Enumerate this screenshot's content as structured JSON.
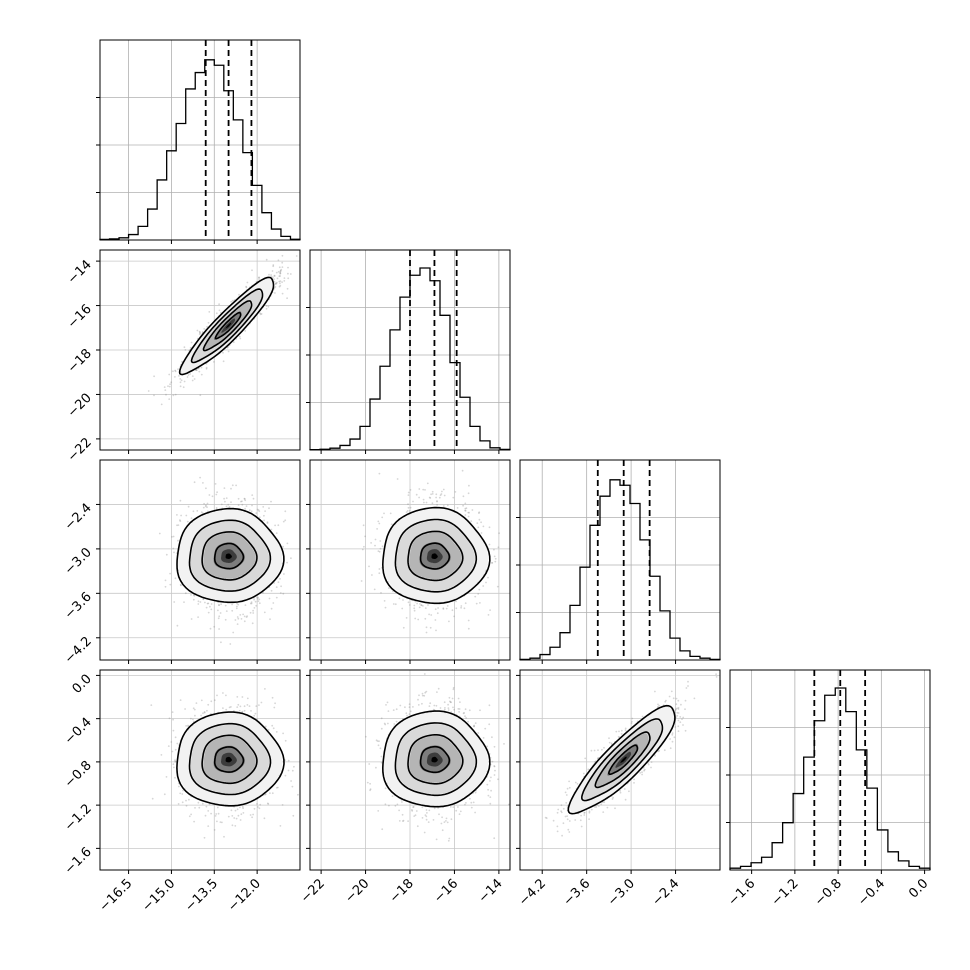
{
  "chart_data": {
    "type": "corner",
    "grid": true,
    "parameters": [
      {
        "range": [
          -17.5,
          -10.5
        ],
        "ticks": [
          -16.5,
          -15.0,
          -13.5,
          -12.0
        ],
        "tick_labels": [
          "−16.5",
          "−15.0",
          "−13.5",
          "−12.0"
        ],
        "quantiles": [
          -13.8,
          -13.0,
          -12.2
        ],
        "mean": -13.0,
        "sd": 0.8
      },
      {
        "range": [
          -22.5,
          -13.5
        ],
        "ticks": [
          -22,
          -20,
          -18,
          -16,
          -14
        ],
        "tick_labels": [
          "−22",
          "−20",
          "−18",
          "−16",
          "−14"
        ],
        "quantiles": [
          -18.0,
          -16.9,
          -15.9
        ],
        "mean": -16.9,
        "sd": 1.05
      },
      {
        "range": [
          -4.5,
          -1.8
        ],
        "ticks": [
          -4.2,
          -3.6,
          -3.0,
          -2.4
        ],
        "tick_labels": [
          "−4.2",
          "−3.6",
          "−3.0",
          "−2.4"
        ],
        "quantiles": [
          -3.45,
          -3.1,
          -2.75
        ],
        "mean": -3.1,
        "sd": 0.35
      },
      {
        "range": [
          -1.8,
          0.05
        ],
        "ticks": [
          -1.6,
          -1.2,
          -0.8,
          -0.4,
          0.0
        ],
        "tick_labels": [
          "−1.6",
          "−1.2",
          "−0.8",
          "−0.4",
          "0.0"
        ],
        "quantiles": [
          -1.02,
          -0.78,
          -0.55
        ],
        "mean": -0.78,
        "sd": 0.24
      }
    ],
    "histograms": [
      [
        0.003,
        0.006,
        0.012,
        0.03,
        0.075,
        0.17,
        0.33,
        0.49,
        0.64,
        0.83,
        0.92,
        0.99,
        0.96,
        0.82,
        0.66,
        0.48,
        0.3,
        0.15,
        0.06,
        0.02,
        0.004
      ],
      [
        0.002,
        0.004,
        0.01,
        0.025,
        0.06,
        0.13,
        0.28,
        0.46,
        0.66,
        0.84,
        0.96,
        1.0,
        0.93,
        0.74,
        0.48,
        0.29,
        0.13,
        0.05,
        0.012,
        0.003
      ],
      [
        0.003,
        0.01,
        0.03,
        0.07,
        0.15,
        0.3,
        0.51,
        0.74,
        0.9,
        0.99,
        0.96,
        0.86,
        0.66,
        0.46,
        0.27,
        0.12,
        0.05,
        0.02,
        0.01,
        0.003
      ],
      [
        0.01,
        0.02,
        0.04,
        0.07,
        0.15,
        0.26,
        0.42,
        0.62,
        0.82,
        0.96,
        1.0,
        0.87,
        0.66,
        0.45,
        0.22,
        0.1,
        0.05,
        0.02,
        0.01
      ]
    ],
    "correlations": {
      "1-0": 0.92,
      "2-0": 0.0,
      "2-1": 0.0,
      "3-0": 0.0,
      "3-1": 0.0,
      "3-2": 0.88
    },
    "scatter_seed": 7
  }
}
